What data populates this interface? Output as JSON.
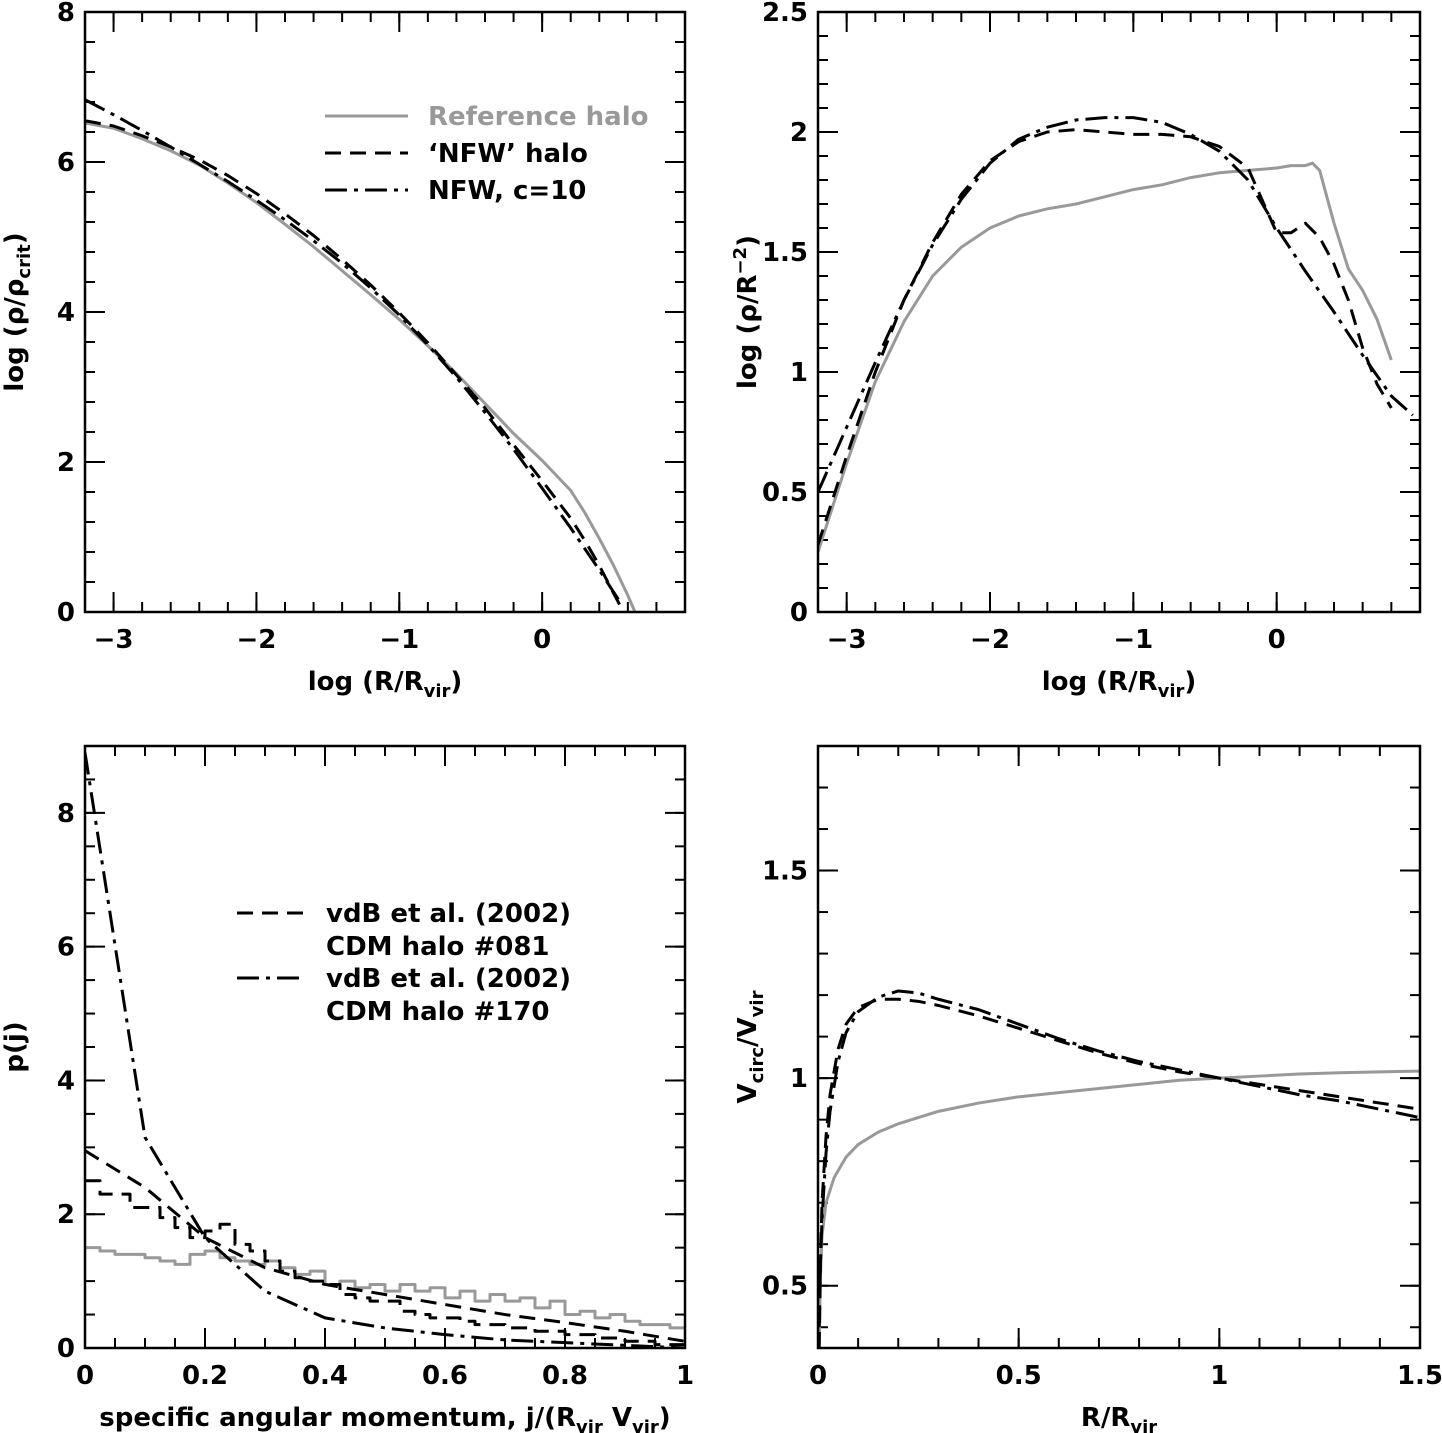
{
  "colors": {
    "reference": "#999999",
    "model": "#000000"
  },
  "chart_data": [
    {
      "id": "p1",
      "type": "line",
      "title": "",
      "xlabel": "log (R/R_vir)",
      "xlabel_main": "log (R/R",
      "xlabel_sub": "vir",
      "xlabel_tail": ")",
      "ylabel_main": "log (ρ/ρ",
      "ylabel_sub": "crit",
      "ylabel_tail": ")",
      "xlim": [
        -3.2,
        1.0
      ],
      "ylim": [
        0,
        8
      ],
      "xticks": [
        -3,
        -2,
        -1,
        0
      ],
      "xtick_labels": [
        "−3",
        "−2",
        "−1",
        "0"
      ],
      "yticks": [
        0,
        2,
        4,
        6,
        8
      ],
      "ytick_labels": [
        "0",
        "2",
        "4",
        "6",
        "8"
      ],
      "xminor": 0.2,
      "yminor": 0.4,
      "legend": [
        {
          "label": "Reference halo",
          "style": "solid",
          "color": "#999999"
        },
        {
          "label": "‘NFW’ halo",
          "style": "dashed",
          "color": "#000000"
        },
        {
          "label": "NFW, c=10",
          "style": "dashdot",
          "color": "#000000"
        }
      ],
      "series": [
        {
          "name": "Reference halo",
          "style": "solid",
          "color": "#999999",
          "x": [
            -3.2,
            -3.0,
            -2.8,
            -2.6,
            -2.4,
            -2.2,
            -2.0,
            -1.8,
            -1.6,
            -1.4,
            -1.2,
            -1.0,
            -0.8,
            -0.6,
            -0.4,
            -0.2,
            0.0,
            0.2,
            0.3,
            0.4,
            0.5,
            0.6,
            0.65
          ],
          "y": [
            6.52,
            6.45,
            6.31,
            6.15,
            5.96,
            5.72,
            5.46,
            5.17,
            4.87,
            4.55,
            4.23,
            3.9,
            3.55,
            3.18,
            2.78,
            2.38,
            2.02,
            1.62,
            1.32,
            0.98,
            0.62,
            0.22,
            0.0
          ]
        },
        {
          "name": "‘NFW’ halo",
          "style": "dashed",
          "color": "#000000",
          "x": [
            -3.2,
            -3.0,
            -2.8,
            -2.6,
            -2.4,
            -2.2,
            -2.0,
            -1.8,
            -1.6,
            -1.4,
            -1.2,
            -1.0,
            -0.8,
            -0.6,
            -0.4,
            -0.2,
            0.0,
            0.2,
            0.3,
            0.4,
            0.5,
            0.57
          ],
          "y": [
            6.55,
            6.48,
            6.35,
            6.2,
            6.03,
            5.82,
            5.58,
            5.31,
            5.02,
            4.7,
            4.36,
            3.99,
            3.59,
            3.16,
            2.72,
            2.23,
            1.75,
            1.25,
            0.95,
            0.62,
            0.25,
            0.0
          ]
        },
        {
          "name": "NFW, c=10",
          "style": "dashdot",
          "color": "#000000",
          "x": [
            -3.2,
            -3.0,
            -2.8,
            -2.6,
            -2.4,
            -2.2,
            -2.0,
            -1.8,
            -1.6,
            -1.4,
            -1.2,
            -1.0,
            -0.8,
            -0.6,
            -0.4,
            -0.2,
            0.0,
            0.2,
            0.4,
            0.55
          ],
          "y": [
            6.83,
            6.63,
            6.42,
            6.2,
            5.97,
            5.74,
            5.49,
            5.23,
            4.95,
            4.65,
            4.32,
            3.96,
            3.56,
            3.13,
            2.66,
            2.17,
            1.65,
            1.12,
            0.56,
            0.12
          ]
        }
      ]
    },
    {
      "id": "p2",
      "type": "line",
      "title": "",
      "xlabel": "log (R/R_vir)",
      "xlabel_main": "log (R/R",
      "xlabel_sub": "vir",
      "xlabel_tail": ")",
      "ylabel_main": "log (ρ/R",
      "ylabel_sub": "",
      "ylabel_sup": "−2",
      "ylabel_tail": ")",
      "xlim": [
        -3.2,
        1.0
      ],
      "ylim": [
        0,
        2.5
      ],
      "xticks": [
        -3,
        -2,
        -1,
        0
      ],
      "xtick_labels": [
        "−3",
        "−2",
        "−1",
        "0"
      ],
      "yticks": [
        0,
        0.5,
        1,
        1.5,
        2,
        2.5
      ],
      "ytick_labels": [
        "0",
        "0.5",
        "1",
        "1.5",
        "2",
        "2.5"
      ],
      "xminor": 0.2,
      "yminor": 0.1,
      "legend": [],
      "series": [
        {
          "name": "Reference halo",
          "style": "solid",
          "color": "#999999",
          "x": [
            -3.2,
            -3.0,
            -2.8,
            -2.6,
            -2.4,
            -2.2,
            -2.0,
            -1.8,
            -1.6,
            -1.4,
            -1.2,
            -1.0,
            -0.8,
            -0.6,
            -0.4,
            -0.2,
            0.0,
            0.1,
            0.2,
            0.25,
            0.3,
            0.4,
            0.5,
            0.6,
            0.7,
            0.8
          ],
          "y": [
            0.25,
            0.62,
            0.96,
            1.21,
            1.4,
            1.52,
            1.6,
            1.65,
            1.68,
            1.7,
            1.73,
            1.76,
            1.78,
            1.81,
            1.83,
            1.84,
            1.85,
            1.86,
            1.86,
            1.87,
            1.84,
            1.62,
            1.43,
            1.34,
            1.22,
            1.05
          ]
        },
        {
          "name": "‘NFW’ halo",
          "style": "dashed",
          "color": "#000000",
          "x": [
            -3.2,
            -3.0,
            -2.8,
            -2.6,
            -2.4,
            -2.2,
            -2.0,
            -1.8,
            -1.6,
            -1.4,
            -1.2,
            -1.0,
            -0.8,
            -0.6,
            -0.4,
            -0.2,
            0.0,
            0.1,
            0.2,
            0.3,
            0.4,
            0.5,
            0.6,
            0.7,
            0.8
          ],
          "y": [
            0.28,
            0.65,
            1.0,
            1.3,
            1.54,
            1.74,
            1.88,
            1.96,
            2.0,
            2.01,
            2.0,
            1.99,
            1.99,
            1.98,
            1.94,
            1.85,
            1.58,
            1.58,
            1.62,
            1.56,
            1.45,
            1.3,
            1.1,
            0.95,
            0.85
          ]
        },
        {
          "name": "NFW, c=10",
          "style": "dashdot",
          "color": "#000000",
          "x": [
            -3.2,
            -3.0,
            -2.8,
            -2.6,
            -2.4,
            -2.2,
            -2.0,
            -1.8,
            -1.6,
            -1.4,
            -1.2,
            -1.0,
            -0.8,
            -0.6,
            -0.4,
            -0.2,
            0.0,
            0.2,
            0.4,
            0.6,
            0.8,
            0.95
          ],
          "y": [
            0.5,
            0.77,
            1.04,
            1.3,
            1.53,
            1.72,
            1.87,
            1.97,
            2.02,
            2.05,
            2.06,
            2.06,
            2.04,
            1.99,
            1.92,
            1.8,
            1.6,
            1.42,
            1.25,
            1.07,
            0.9,
            0.82
          ]
        }
      ]
    },
    {
      "id": "p3",
      "type": "line",
      "title": "",
      "xlabel_main": "specific angular momentum, j/(R",
      "xlabel_sub": "vir",
      "xlabel_mid": " V",
      "xlabel_sub2": "vir",
      "xlabel_tail": ")",
      "ylabel_main": "p(j)",
      "ylabel_sub": "",
      "ylabel_tail": "",
      "xlim": [
        0,
        1
      ],
      "ylim": [
        0,
        9
      ],
      "xticks": [
        0,
        0.2,
        0.4,
        0.6,
        0.8,
        1
      ],
      "xtick_labels": [
        "0",
        "0.2",
        "0.4",
        "0.6",
        "0.8",
        "1"
      ],
      "yticks": [
        0,
        2,
        4,
        6,
        8
      ],
      "ytick_labels": [
        "0",
        "2",
        "4",
        "6",
        "8"
      ],
      "xminor": 0.05,
      "yminor": 0.5,
      "legend": [
        {
          "label": "vdB et al. (2002)",
          "label2": "CDM halo #081",
          "style": "dashed",
          "color": "#000000"
        },
        {
          "label": "vdB et al. (2002)",
          "label2": "CDM halo #170",
          "style": "dashdot",
          "color": "#000000"
        }
      ],
      "series": [
        {
          "name": "Reference halo histogram",
          "style": "solid",
          "color": "#999999",
          "step": true,
          "edges": [
            0,
            0.025,
            0.05,
            0.075,
            0.1,
            0.125,
            0.15,
            0.175,
            0.2,
            0.225,
            0.25,
            0.275,
            0.3,
            0.325,
            0.35,
            0.375,
            0.4,
            0.425,
            0.45,
            0.475,
            0.5,
            0.525,
            0.55,
            0.575,
            0.6,
            0.625,
            0.65,
            0.675,
            0.7,
            0.725,
            0.75,
            0.775,
            0.8,
            0.825,
            0.85,
            0.875,
            0.9,
            0.925,
            0.95,
            0.975,
            1.0
          ],
          "values": [
            1.5,
            1.45,
            1.4,
            1.4,
            1.35,
            1.3,
            1.25,
            1.4,
            1.45,
            1.35,
            1.3,
            1.25,
            1.3,
            1.2,
            1.1,
            1.15,
            0.95,
            1.0,
            0.9,
            0.95,
            0.85,
            0.95,
            0.85,
            0.9,
            0.75,
            0.85,
            0.7,
            0.8,
            0.7,
            0.75,
            0.6,
            0.7,
            0.5,
            0.55,
            0.45,
            0.5,
            0.4,
            0.35,
            0.35,
            0.3
          ]
        },
        {
          "name": "CDM halo #081 histogram",
          "style": "dashed",
          "color": "#000000",
          "step": true,
          "edges": [
            0,
            0.025,
            0.05,
            0.075,
            0.1,
            0.125,
            0.15,
            0.175,
            0.2,
            0.225,
            0.25,
            0.275,
            0.3,
            0.325,
            0.35,
            0.375,
            0.4,
            0.425,
            0.45,
            0.475,
            0.5,
            0.525,
            0.55,
            0.575,
            0.6,
            0.625,
            0.65,
            0.675,
            0.7,
            0.725,
            0.75,
            0.775,
            0.8,
            0.825,
            0.85,
            0.875,
            0.9,
            0.925,
            0.95,
            0.975,
            1.0
          ],
          "values": [
            2.5,
            2.3,
            2.3,
            2.1,
            2.1,
            1.95,
            1.8,
            1.65,
            1.75,
            1.85,
            1.55,
            1.45,
            1.3,
            1.15,
            1.05,
            1.0,
            0.95,
            0.8,
            0.75,
            0.7,
            0.7,
            0.55,
            0.5,
            0.45,
            0.45,
            0.4,
            0.35,
            0.35,
            0.3,
            0.3,
            0.25,
            0.25,
            0.2,
            0.2,
            0.15,
            0.15,
            0.1,
            0.1,
            0.05,
            0.05
          ]
        },
        {
          "name": "vdB et al. (2002) CDM halo #081",
          "style": "dashed",
          "color": "#000000",
          "x": [
            0,
            0.1,
            0.2,
            0.3,
            0.4,
            0.5,
            0.6,
            0.7,
            0.8,
            0.9,
            1.0
          ],
          "y": [
            2.95,
            2.4,
            1.65,
            1.2,
            0.95,
            0.8,
            0.65,
            0.5,
            0.38,
            0.25,
            0.1
          ]
        },
        {
          "name": "vdB et al. (2002) CDM halo #170",
          "style": "dashdot",
          "color": "#000000",
          "x": [
            0,
            0.1,
            0.2,
            0.3,
            0.4,
            0.5,
            0.6,
            0.7,
            0.8,
            0.9,
            1.0
          ],
          "y": [
            8.9,
            3.15,
            1.65,
            0.85,
            0.45,
            0.3,
            0.2,
            0.12,
            0.08,
            0.04,
            0.0
          ]
        }
      ]
    },
    {
      "id": "p4",
      "type": "line",
      "title": "",
      "xlabel_main": "R/R",
      "xlabel_sub": "vir",
      "xlabel_tail": "",
      "ylabel_main": "V",
      "ylabel_sub": "circ",
      "ylabel_mid": "/V",
      "ylabel_sub2": "vir",
      "ylabel_tail": "",
      "xlim": [
        0,
        1.5
      ],
      "ylim": [
        0.35,
        1.8
      ],
      "xticks": [
        0,
        0.5,
        1,
        1.5
      ],
      "xtick_labels": [
        "0",
        "0.5",
        "1",
        "1.5"
      ],
      "yticks": [
        0.5,
        1,
        1.5
      ],
      "ytick_labels": [
        "0.5",
        "1",
        "1.5"
      ],
      "xminor": 0.1,
      "yminor": 0.1,
      "legend": [],
      "series": [
        {
          "name": "Reference halo",
          "style": "solid",
          "color": "#999999",
          "x": [
            0.003,
            0.006,
            0.01,
            0.02,
            0.04,
            0.07,
            0.1,
            0.15,
            0.2,
            0.3,
            0.4,
            0.5,
            0.6,
            0.7,
            0.8,
            0.9,
            1.0,
            1.1,
            1.2,
            1.3,
            1.4,
            1.5
          ],
          "y": [
            0.36,
            0.52,
            0.62,
            0.7,
            0.76,
            0.81,
            0.84,
            0.87,
            0.89,
            0.92,
            0.94,
            0.955,
            0.965,
            0.975,
            0.985,
            0.995,
            1.0,
            1.005,
            1.01,
            1.013,
            1.015,
            1.017
          ]
        },
        {
          "name": "‘NFW’ halo",
          "style": "dashed",
          "color": "#000000",
          "x": [
            0.003,
            0.006,
            0.01,
            0.02,
            0.03,
            0.05,
            0.07,
            0.1,
            0.15,
            0.2,
            0.25,
            0.3,
            0.4,
            0.5,
            0.6,
            0.7,
            0.8,
            0.9,
            1.0,
            1.1,
            1.2,
            1.3,
            1.4,
            1.5
          ],
          "y": [
            0.35,
            0.55,
            0.7,
            0.86,
            0.96,
            1.07,
            1.13,
            1.17,
            1.19,
            1.19,
            1.185,
            1.175,
            1.15,
            1.12,
            1.09,
            1.06,
            1.035,
            1.015,
            1.0,
            0.985,
            0.97,
            0.955,
            0.94,
            0.925
          ]
        },
        {
          "name": "NFW, c=10",
          "style": "dashdot",
          "color": "#000000",
          "x": [
            0.003,
            0.006,
            0.01,
            0.02,
            0.03,
            0.05,
            0.07,
            0.1,
            0.15,
            0.2,
            0.25,
            0.3,
            0.4,
            0.5,
            0.6,
            0.7,
            0.8,
            0.9,
            1.0,
            1.1,
            1.2,
            1.3,
            1.4,
            1.5
          ],
          "y": [
            0.4,
            0.55,
            0.66,
            0.82,
            0.92,
            1.04,
            1.11,
            1.16,
            1.195,
            1.21,
            1.205,
            1.19,
            1.165,
            1.13,
            1.095,
            1.065,
            1.04,
            1.02,
            1.0,
            0.98,
            0.96,
            0.945,
            0.925,
            0.905
          ]
        }
      ]
    }
  ]
}
